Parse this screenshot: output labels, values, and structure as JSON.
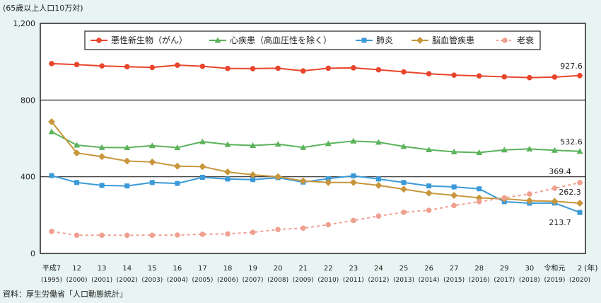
{
  "chart_data": {
    "type": "line",
    "unit_label": "(65歳以上人口10万対)",
    "x_unit": "(年)",
    "source": "資料：厚生労働省「人口動態統計」",
    "categories": [
      [
        "平成7",
        "(1995)"
      ],
      [
        "12",
        "(2000)"
      ],
      [
        "13",
        "(2001)"
      ],
      [
        "14",
        "(2002)"
      ],
      [
        "15",
        "(2003)"
      ],
      [
        "16",
        "(2004)"
      ],
      [
        "17",
        "(2005)"
      ],
      [
        "18",
        "(2006)"
      ],
      [
        "19",
        "(2007)"
      ],
      [
        "20",
        "(2008)"
      ],
      [
        "21",
        "(2009)"
      ],
      [
        "22",
        "(2010)"
      ],
      [
        "23",
        "(2011)"
      ],
      [
        "24",
        "(2012)"
      ],
      [
        "25",
        "(2013)"
      ],
      [
        "26",
        "(2014)"
      ],
      [
        "27",
        "(2015)"
      ],
      [
        "28",
        "(2016)"
      ],
      [
        "29",
        "(2017)"
      ],
      [
        "30",
        "(2018)"
      ],
      [
        "令和元",
        "(2019)"
      ],
      [
        "2",
        "(2020)"
      ]
    ],
    "ylim": [
      0,
      1200
    ],
    "yticks": [
      {
        "v": 0,
        "label": "0"
      },
      {
        "v": 400,
        "label": "400"
      },
      {
        "v": 800,
        "label": "800"
      },
      {
        "v": 1200,
        "label": "1,200"
      }
    ],
    "grid": "horizontal at 400 and 800",
    "legend": "top",
    "series": [
      {
        "name": "悪性新生物（がん）",
        "color": "#e8452c",
        "marker": "circle",
        "dash": false,
        "end_label": "927.6",
        "values": [
          990,
          985,
          978,
          974,
          970,
          982,
          976,
          965,
          964,
          966,
          952,
          966,
          968,
          958,
          947,
          937,
          930,
          926,
          921,
          917,
          920,
          927.6
        ]
      },
      {
        "name": "心疾患（高血圧性を除く）",
        "color": "#5ab25a",
        "marker": "triangle",
        "dash": false,
        "end_label": "532.6",
        "values": [
          635,
          565,
          553,
          552,
          562,
          552,
          583,
          568,
          563,
          570,
          553,
          573,
          586,
          580,
          558,
          541,
          530,
          526,
          540,
          545,
          538,
          532.6
        ]
      },
      {
        "name": "肺炎",
        "color": "#3a9ad8",
        "marker": "square",
        "dash": false,
        "end_label": "213.7",
        "values": [
          406,
          370,
          355,
          352,
          370,
          365,
          397,
          388,
          385,
          395,
          372,
          390,
          405,
          388,
          370,
          352,
          347,
          337,
          270,
          262,
          263,
          213.7
        ]
      },
      {
        "name": "脳血管疾患",
        "color": "#c8963c",
        "marker": "diamond",
        "dash": false,
        "end_label": "262.3",
        "values": [
          687,
          524,
          505,
          482,
          477,
          455,
          453,
          425,
          410,
          400,
          378,
          370,
          370,
          355,
          335,
          315,
          303,
          290,
          285,
          275,
          272,
          262.3
        ]
      },
      {
        "name": "老衰",
        "color": "#f0a090",
        "marker": "circle",
        "dash": true,
        "end_label": "369.4",
        "values": [
          115,
          95,
          95,
          95,
          95,
          96,
          100,
          102,
          110,
          125,
          132,
          150,
          172,
          195,
          215,
          225,
          250,
          270,
          290,
          310,
          340,
          369.4
        ]
      }
    ]
  }
}
